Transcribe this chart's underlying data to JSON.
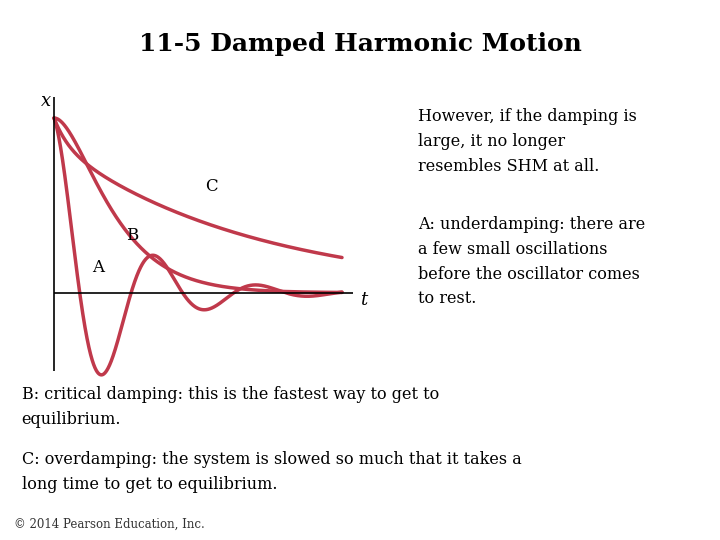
{
  "title": "11-5 Damped Harmonic Motion",
  "title_fontsize": 18,
  "background_color": "#ffffff",
  "curve_color": "#c0394b",
  "curve_linewidth": 2.5,
  "text_right_1": "However, if the damping is\nlarge, it no longer\nresembles SHM at all.",
  "text_right_2": "A: underdamping: there are\na few small oscillations\nbefore the oscillator comes\nto rest.",
  "text_bottom_1": "B: critical damping: this is the fastest way to get to\nequilibrium.",
  "text_bottom_2": "C: overdamping: the system is slowed so much that it takes a\nlong time to get to equilibrium.",
  "text_copyright": "© 2014 Pearson Education, Inc.",
  "label_A": "A",
  "label_B": "B",
  "label_C": "C",
  "label_x": "x",
  "label_t": "t",
  "axis_color": "#000000",
  "text_fontsize": 11.5,
  "label_fontsize": 12
}
